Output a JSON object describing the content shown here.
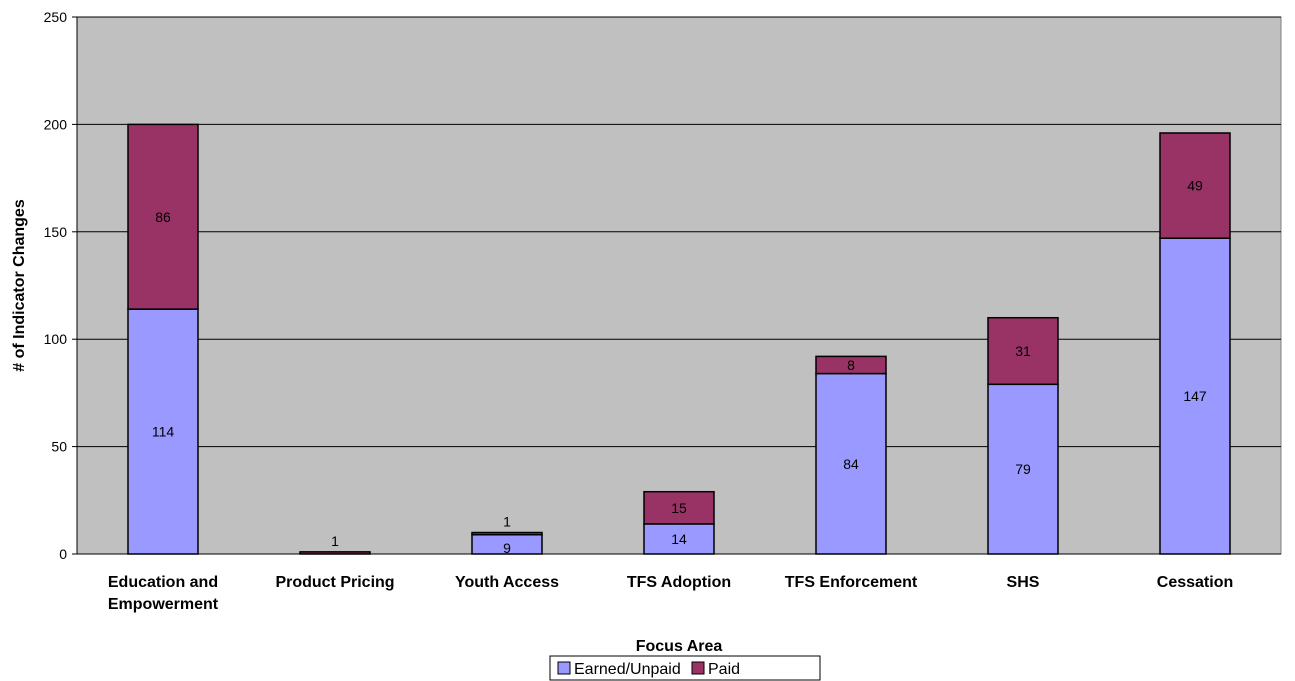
{
  "chart_data": {
    "type": "bar",
    "stacked": true,
    "categories": [
      [
        "Education and",
        "Empowerment"
      ],
      [
        "Product Pricing"
      ],
      [
        "Youth Access"
      ],
      [
        "TFS Adoption"
      ],
      [
        "TFS Enforcement"
      ],
      [
        "SHS"
      ],
      [
        "Cessation"
      ]
    ],
    "series": [
      {
        "name": "Earned/Unpaid",
        "color": "#9999ff",
        "values": [
          114,
          0,
          9,
          14,
          84,
          79,
          147
        ]
      },
      {
        "name": "Paid",
        "color": "#993366",
        "values": [
          86,
          1,
          1,
          15,
          8,
          31,
          49
        ]
      }
    ],
    "xlabel": "Focus Area",
    "ylabel": "# of Indicator Changes",
    "ylim": [
      0,
      250
    ],
    "yticks": [
      0,
      50,
      100,
      150,
      200,
      250
    ],
    "grid": true,
    "plot_background": "#c0c0c0",
    "legend_position": "bottom"
  }
}
